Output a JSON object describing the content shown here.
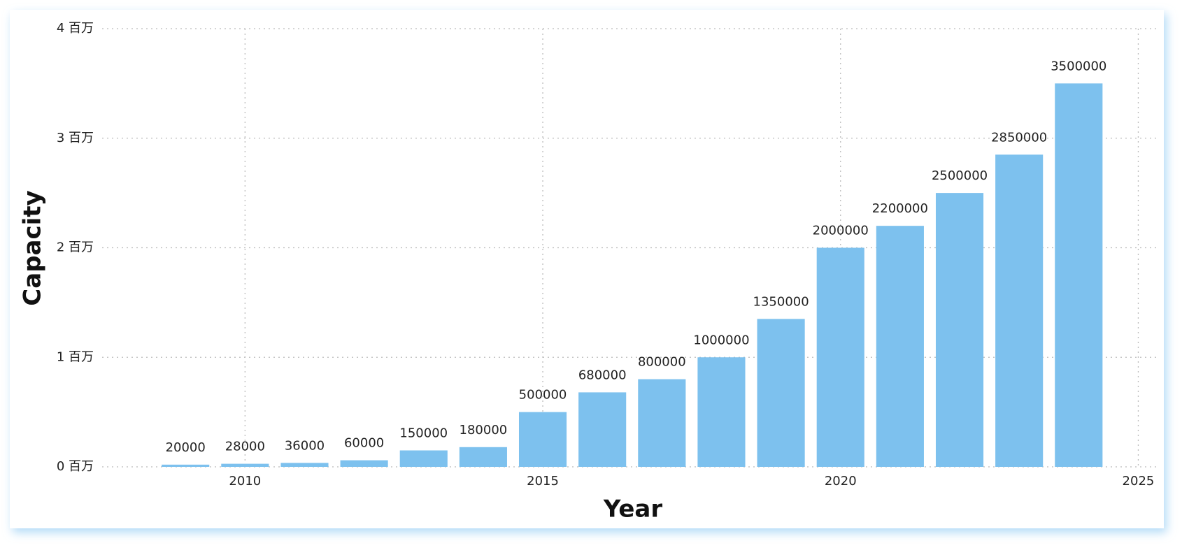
{
  "chart_data": {
    "type": "bar",
    "x": [
      2009,
      2010,
      2011,
      2012,
      2013,
      2014,
      2015,
      2016,
      2017,
      2018,
      2019,
      2020,
      2021,
      2022,
      2023,
      2024
    ],
    "values": [
      20000,
      28000,
      36000,
      60000,
      150000,
      180000,
      500000,
      680000,
      800000,
      1000000,
      1350000,
      2000000,
      2200000,
      2500000,
      2850000,
      3500000
    ],
    "color": "#7dc1ee",
    "xlabel": "Year",
    "ylabel": "Capacity",
    "xlim": [
      2007.6,
      2025.3
    ],
    "xticks": [
      2010,
      2015,
      2020,
      2025
    ],
    "ylim": [
      0,
      4000000
    ],
    "yticks": [
      {
        "value": 0,
        "label": "0 百万"
      },
      {
        "value": 1000000,
        "label": "1 百万"
      },
      {
        "value": 2000000,
        "label": "2 百万"
      },
      {
        "value": 3000000,
        "label": "3 百万"
      },
      {
        "value": 4000000,
        "label": "4 百万"
      }
    ],
    "grid": true
  }
}
